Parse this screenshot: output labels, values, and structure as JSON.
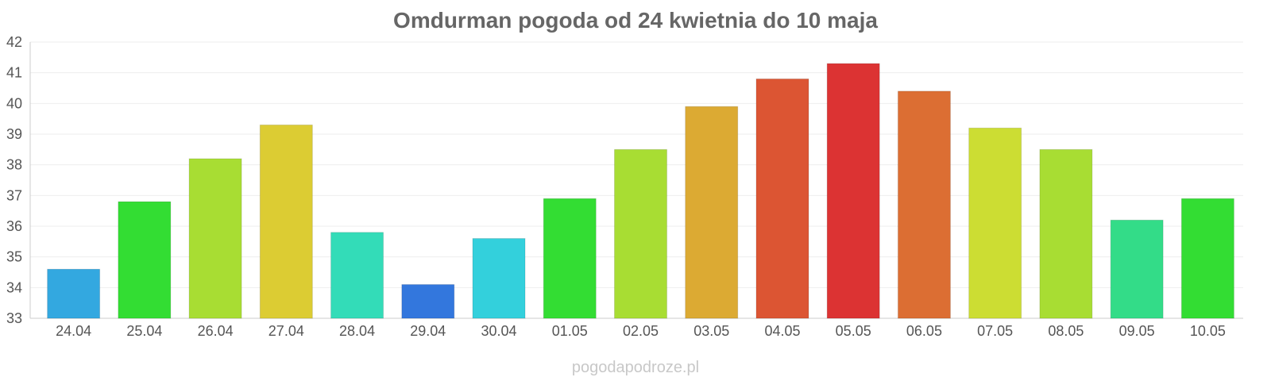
{
  "chart_data": {
    "type": "bar",
    "title": "Omdurman pogoda od 24 kwietnia do 10 maja",
    "xlabel": "",
    "ylabel": "",
    "ylim": [
      33,
      42
    ],
    "yticks": [
      "33",
      "34",
      "35",
      "36",
      "37",
      "38",
      "39",
      "40",
      "41",
      "42"
    ],
    "grid": true,
    "categories": [
      "24.04",
      "25.04",
      "26.04",
      "27.04",
      "28.04",
      "29.04",
      "30.04",
      "01.05",
      "02.05",
      "03.05",
      "04.05",
      "05.05",
      "06.05",
      "07.05",
      "08.05",
      "09.05",
      "10.05"
    ],
    "values": [
      34.6,
      36.8,
      38.2,
      39.3,
      35.8,
      34.1,
      35.6,
      36.9,
      38.5,
      39.9,
      40.8,
      41.3,
      40.4,
      39.2,
      38.5,
      36.2,
      36.9
    ],
    "colors": [
      "#33a8e0",
      "#33dd33",
      "#a8dd33",
      "#dccc33",
      "#33dcb8",
      "#3377dd",
      "#33d0dc",
      "#33dd33",
      "#a8dd33",
      "#dcaa33",
      "#dc5533",
      "#dc3333",
      "#dc6e33",
      "#ccdd33",
      "#a8dd33",
      "#33dc88",
      "#33dd33"
    ]
  },
  "footer": {
    "watermark": "pogodapodroze.pl"
  }
}
